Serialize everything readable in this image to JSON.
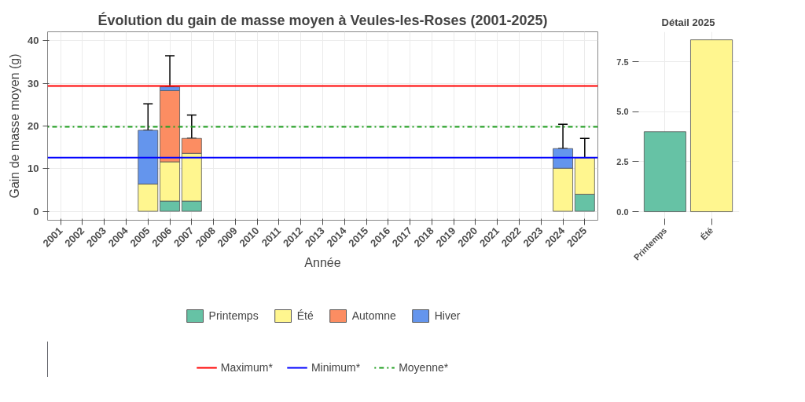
{
  "chart_data": [
    {
      "type": "bar",
      "title": "Évolution du gain de masse moyen à Veules-les-Roses (2001-2025)",
      "xlabel": "Année",
      "ylabel": "Gain de masse moyen (g)",
      "categories": [
        "2001",
        "2002",
        "2003",
        "2004",
        "2005",
        "2006",
        "2007",
        "2008",
        "2009",
        "2010",
        "2011",
        "2012",
        "2013",
        "2014",
        "2015",
        "2016",
        "2017",
        "2018",
        "2019",
        "2020",
        "2021",
        "2022",
        "2023",
        "2024",
        "2025"
      ],
      "stacked": true,
      "series": [
        {
          "name": "Printemps",
          "color": "#66c2a5",
          "values": [
            null,
            null,
            null,
            null,
            null,
            2.4,
            2.4,
            null,
            null,
            null,
            null,
            null,
            null,
            null,
            null,
            null,
            null,
            null,
            null,
            null,
            null,
            null,
            null,
            null,
            4.0
          ]
        },
        {
          "name": "Été",
          "color": "#fff68f",
          "values": [
            null,
            null,
            null,
            null,
            6.4,
            9.2,
            11.2,
            null,
            null,
            null,
            null,
            null,
            null,
            null,
            null,
            null,
            null,
            null,
            null,
            null,
            null,
            null,
            null,
            10.1,
            8.5
          ],
          "errors": [
            null,
            null,
            null,
            null,
            null,
            null,
            null,
            null,
            null,
            null,
            null,
            null,
            null,
            null,
            null,
            null,
            null,
            null,
            null,
            null,
            null,
            null,
            null,
            null,
            [
              12.5,
              17.1
            ]
          ]
        },
        {
          "name": "Automne",
          "color": "#fc8d62",
          "values": [
            null,
            null,
            null,
            null,
            null,
            16.7,
            3.5,
            null,
            null,
            null,
            null,
            null,
            null,
            null,
            null,
            null,
            null,
            null,
            null,
            null,
            null,
            null,
            null,
            null,
            null
          ],
          "errors": [
            null,
            null,
            null,
            null,
            null,
            null,
            [
              17.1,
              22.6
            ],
            null,
            null,
            null,
            null,
            null,
            null,
            null,
            null,
            null,
            null,
            null,
            null,
            null,
            null,
            null,
            null,
            null,
            null
          ]
        },
        {
          "name": "Hiver",
          "color": "#6495ed",
          "values": [
            null,
            null,
            null,
            null,
            12.6,
            0.9,
            null,
            null,
            null,
            null,
            null,
            null,
            null,
            null,
            null,
            null,
            null,
            null,
            null,
            null,
            null,
            null,
            null,
            4.6,
            null
          ],
          "errors": [
            null,
            null,
            null,
            null,
            [
              19.0,
              25.2
            ],
            [
              29.2,
              36.5
            ],
            null,
            null,
            null,
            null,
            null,
            null,
            null,
            null,
            null,
            null,
            null,
            null,
            null,
            null,
            null,
            null,
            null,
            [
              14.7,
              20.4
            ],
            null
          ]
        }
      ],
      "ylim": [
        -2.1,
        42.1
      ],
      "yticks": [
        0,
        10,
        20,
        30,
        40
      ],
      "ref_lines": [
        {
          "axis": "y",
          "value": 29.4,
          "label": "Maximum*",
          "color": "#ff0000",
          "line_style": "solid"
        },
        {
          "axis": "y",
          "value": 12.6,
          "label": "Minimum*",
          "color": "#0000ff",
          "line_style": "solid"
        },
        {
          "axis": "y",
          "value": 19.8,
          "label": "Moyenne*",
          "color": "#1e9e1e",
          "line_style": "dotdash"
        }
      ],
      "grid": true,
      "legend": "bottom"
    },
    {
      "type": "bar",
      "title": "Détail 2025",
      "categories": [
        "Printemps",
        "Été"
      ],
      "values": [
        4.0,
        8.6
      ],
      "colors": [
        "#66c2a5",
        "#fff68f"
      ],
      "ylim": [
        -0.43,
        9.0
      ],
      "yticks": [
        {
          "value": 0,
          "label": "0.0"
        },
        {
          "value": 2.5,
          "label": "2.5"
        },
        {
          "value": 5,
          "label": "5.0"
        },
        {
          "value": 7.5,
          "label": "7.5"
        }
      ],
      "grid": true
    }
  ]
}
